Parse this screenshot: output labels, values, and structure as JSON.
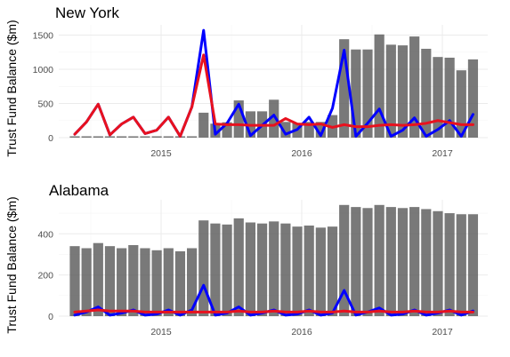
{
  "chart_data": [
    {
      "type": "bar",
      "title": "New York",
      "ylabel": "Trust Fund Balance ($m)",
      "xlabel": "",
      "x_tick_labels": [
        "2015",
        "2016",
        "2017"
      ],
      "y_tick_labels": [
        "0",
        "500",
        "1000",
        "1500"
      ],
      "ylim": [
        0,
        1650
      ],
      "categories": [
        "2014-06",
        "2014-07",
        "2014-08",
        "2014-09",
        "2014-10",
        "2014-11",
        "2014-12",
        "2015-01",
        "2015-02",
        "2015-03",
        "2015-04",
        "2015-05",
        "2015-06",
        "2015-07",
        "2015-08",
        "2015-09",
        "2015-10",
        "2015-11",
        "2015-12",
        "2016-01",
        "2016-02",
        "2016-03",
        "2016-04",
        "2016-05",
        "2016-06",
        "2016-07",
        "2016-08",
        "2016-09",
        "2016-10",
        "2016-11",
        "2016-12",
        "2017-01",
        "2017-02",
        "2017-03",
        "2017-04"
      ],
      "bar_values": [
        20,
        20,
        20,
        20,
        20,
        20,
        20,
        20,
        20,
        20,
        20,
        365,
        205,
        225,
        545,
        385,
        385,
        555,
        230,
        215,
        230,
        230,
        330,
        1440,
        1290,
        1290,
        1510,
        1360,
        1350,
        1480,
        1300,
        1180,
        1170,
        985,
        1145
      ],
      "series": [
        {
          "name": "blue",
          "color": "#0000ff",
          "values": [
            50,
            230,
            490,
            40,
            200,
            300,
            60,
            110,
            300,
            20,
            450,
            1570,
            50,
            210,
            490,
            30,
            180,
            330,
            50,
            120,
            300,
            30,
            430,
            1280,
            20,
            210,
            420,
            20,
            110,
            290,
            20,
            120,
            250,
            20,
            340
          ]
        },
        {
          "name": "red",
          "color": "#e8111e",
          "values": [
            50,
            230,
            490,
            40,
            200,
            300,
            60,
            110,
            300,
            20,
            450,
            1210,
            200,
            190,
            190,
            180,
            180,
            180,
            280,
            200,
            190,
            200,
            150,
            190,
            160,
            160,
            180,
            190,
            180,
            190,
            210,
            250,
            220,
            190,
            190
          ]
        }
      ]
    },
    {
      "type": "bar",
      "title": "Alabama",
      "ylabel": "Trust Fund Balance ($m)",
      "xlabel": "",
      "x_tick_labels": [
        "2015",
        "2016",
        "2017"
      ],
      "y_tick_labels": [
        "0",
        "200",
        "400"
      ],
      "ylim": [
        0,
        565
      ],
      "categories": [
        "2014-06",
        "2014-07",
        "2014-08",
        "2014-09",
        "2014-10",
        "2014-11",
        "2014-12",
        "2015-01",
        "2015-02",
        "2015-03",
        "2015-04",
        "2015-05",
        "2015-06",
        "2015-07",
        "2015-08",
        "2015-09",
        "2015-10",
        "2015-11",
        "2015-12",
        "2016-01",
        "2016-02",
        "2016-03",
        "2016-04",
        "2016-05",
        "2016-06",
        "2016-07",
        "2016-08",
        "2016-09",
        "2016-10",
        "2016-11",
        "2016-12",
        "2017-01",
        "2017-02",
        "2017-03",
        "2017-04"
      ],
      "bar_values": [
        340,
        330,
        355,
        340,
        330,
        345,
        330,
        320,
        330,
        315,
        330,
        465,
        450,
        445,
        475,
        455,
        450,
        460,
        450,
        435,
        440,
        430,
        435,
        540,
        530,
        525,
        540,
        530,
        525,
        530,
        520,
        510,
        500,
        495,
        495
      ],
      "series": [
        {
          "name": "blue",
          "color": "#0000ff",
          "values": [
            5,
            20,
            45,
            5,
            15,
            30,
            5,
            10,
            30,
            5,
            30,
            150,
            5,
            15,
            45,
            5,
            15,
            30,
            5,
            10,
            30,
            5,
            15,
            125,
            5,
            20,
            40,
            5,
            10,
            30,
            5,
            15,
            30,
            5,
            25
          ]
        },
        {
          "name": "red",
          "color": "#e8111e",
          "values": [
            20,
            25,
            30,
            25,
            25,
            25,
            20,
            20,
            20,
            20,
            20,
            20,
            20,
            20,
            25,
            20,
            20,
            25,
            20,
            20,
            25,
            20,
            20,
            25,
            20,
            20,
            25,
            20,
            20,
            25,
            20,
            20,
            25,
            20,
            20
          ]
        }
      ]
    }
  ]
}
